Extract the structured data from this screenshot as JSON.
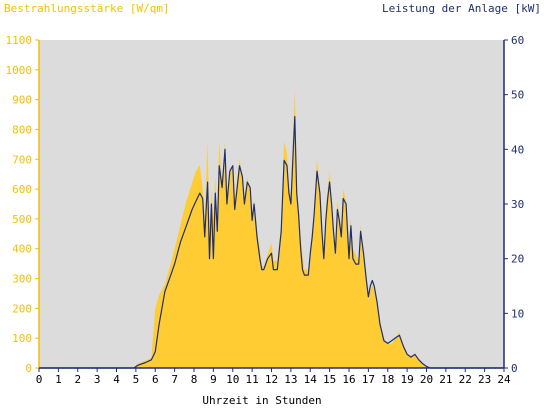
{
  "chart_data": {
    "type": "area",
    "title_left": "Bestrahlungsstärke [W/qm]",
    "title_right": "Leistung der Anlage [kW]",
    "xlabel": "Uhrzeit in Stunden",
    "x_ticks": [
      "0",
      "1",
      "2",
      "3",
      "4",
      "5",
      "6",
      "7",
      "8",
      "9",
      "10",
      "11",
      "12",
      "13",
      "14",
      "15",
      "16",
      "17",
      "18",
      "19",
      "20",
      "21",
      "22",
      "23",
      "24"
    ],
    "y_left_ticks": [
      "0",
      "100",
      "200",
      "300",
      "400",
      "500",
      "600",
      "700",
      "800",
      "900",
      "1000",
      "1100"
    ],
    "y_right_ticks": [
      "0",
      "10",
      "20",
      "30",
      "40",
      "50",
      "60"
    ],
    "xlim": [
      0,
      24
    ],
    "ylim_left": [
      0,
      1100
    ],
    "ylim_right": [
      0,
      60
    ],
    "colors": {
      "plot_background": "#dcdcdc",
      "irradiance_fill": "#ffcc33",
      "power_line": "#1f2f6f",
      "left_axis": "#f5c000",
      "right_axis": "#1f2f6f"
    },
    "series": [
      {
        "name": "Bestrahlungsstärke [W/qm]",
        "axis": "left",
        "x": [
          0,
          4.9,
          5.1,
          5.5,
          5.8,
          5.9,
          6.0,
          6.2,
          6.5,
          6.8,
          7.0,
          7.3,
          7.6,
          7.9,
          8.1,
          8.3,
          8.45,
          8.55,
          8.7,
          8.8,
          8.9,
          9.0,
          9.1,
          9.2,
          9.3,
          9.45,
          9.6,
          9.7,
          9.85,
          10.0,
          10.1,
          10.2,
          10.35,
          10.5,
          10.6,
          10.75,
          10.9,
          11.0,
          11.1,
          11.25,
          11.4,
          11.5,
          11.6,
          11.8,
          12.0,
          12.1,
          12.3,
          12.5,
          12.65,
          12.8,
          12.9,
          13.0,
          13.1,
          13.2,
          13.3,
          13.4,
          13.5,
          13.6,
          13.7,
          13.9,
          14.0,
          14.1,
          14.2,
          14.35,
          14.5,
          14.6,
          14.7,
          14.8,
          14.9,
          15.0,
          15.1,
          15.2,
          15.3,
          15.4,
          15.5,
          15.6,
          15.7,
          15.85,
          16.0,
          16.1,
          16.2,
          16.35,
          16.5,
          16.6,
          16.75,
          16.9,
          17.0,
          17.1,
          17.2,
          17.3,
          17.45,
          17.6,
          17.8,
          18.0,
          18.2,
          18.4,
          18.6,
          18.8,
          19.0,
          19.2,
          19.4,
          19.6,
          19.8,
          20.0,
          20.2,
          20.4,
          24
        ],
        "values": [
          0,
          0,
          15,
          25,
          35,
          120,
          200,
          245,
          280,
          350,
          400,
          480,
          560,
          620,
          660,
          680,
          600,
          500,
          760,
          420,
          600,
          500,
          640,
          480,
          760,
          620,
          760,
          560,
          660,
          680,
          560,
          620,
          700,
          640,
          560,
          640,
          600,
          520,
          560,
          460,
          400,
          340,
          340,
          380,
          420,
          360,
          360,
          480,
          760,
          720,
          600,
          580,
          760,
          940,
          600,
          540,
          440,
          380,
          330,
          330,
          400,
          460,
          520,
          700,
          600,
          480,
          400,
          540,
          600,
          660,
          560,
          480,
          400,
          560,
          520,
          460,
          600,
          560,
          400,
          500,
          400,
          380,
          360,
          480,
          400,
          300,
          220,
          260,
          280,
          260,
          220,
          160,
          100,
          80,
          80,
          100,
          120,
          80,
          50,
          40,
          45,
          30,
          15,
          5,
          0,
          0,
          0
        ]
      },
      {
        "name": "Leistung der Anlage [kW]",
        "axis": "right",
        "x": [
          0,
          4.9,
          5.1,
          5.5,
          5.8,
          6.0,
          6.2,
          6.5,
          6.8,
          7.0,
          7.3,
          7.6,
          7.9,
          8.1,
          8.3,
          8.45,
          8.55,
          8.7,
          8.8,
          8.9,
          9.0,
          9.1,
          9.2,
          9.3,
          9.45,
          9.6,
          9.7,
          9.85,
          10.0,
          10.1,
          10.2,
          10.35,
          10.5,
          10.6,
          10.75,
          10.9,
          11.0,
          11.1,
          11.25,
          11.4,
          11.5,
          11.6,
          11.8,
          12.0,
          12.1,
          12.3,
          12.5,
          12.65,
          12.8,
          12.9,
          13.0,
          13.1,
          13.2,
          13.3,
          13.4,
          13.5,
          13.6,
          13.7,
          13.9,
          14.0,
          14.1,
          14.2,
          14.35,
          14.5,
          14.6,
          14.7,
          14.8,
          14.9,
          15.0,
          15.1,
          15.2,
          15.3,
          15.4,
          15.5,
          15.6,
          15.7,
          15.85,
          16.0,
          16.1,
          16.2,
          16.35,
          16.5,
          16.6,
          16.75,
          16.9,
          17.0,
          17.1,
          17.2,
          17.3,
          17.45,
          17.6,
          17.8,
          18.0,
          18.2,
          18.4,
          18.6,
          18.8,
          19.0,
          19.2,
          19.4,
          19.6,
          19.8,
          20.0,
          20.2,
          20.4,
          24
        ],
        "values": [
          0,
          0,
          0.5,
          1,
          1.5,
          3,
          8,
          14,
          17,
          19,
          23,
          26,
          29,
          30.5,
          32,
          31,
          24,
          34,
          20,
          30,
          20,
          32,
          25,
          37,
          33,
          40,
          30,
          36,
          37,
          29,
          32,
          37,
          35,
          30,
          34,
          33,
          27,
          30,
          24,
          20,
          18,
          18,
          20,
          21,
          18,
          18,
          25,
          38,
          37,
          32,
          30,
          38,
          46,
          32,
          28,
          22,
          18,
          17,
          17,
          21,
          24,
          28,
          36,
          32,
          25,
          20,
          27,
          31,
          34,
          30,
          25,
          21,
          29,
          27,
          24,
          31,
          30,
          20,
          26,
          20,
          19,
          19,
          25,
          21,
          16,
          13,
          15,
          16,
          15,
          12,
          8,
          5,
          4.5,
          5,
          5.5,
          6,
          4,
          2.5,
          2,
          2.5,
          1.5,
          0.8,
          0.3,
          0,
          0,
          0
        ]
      }
    ]
  }
}
